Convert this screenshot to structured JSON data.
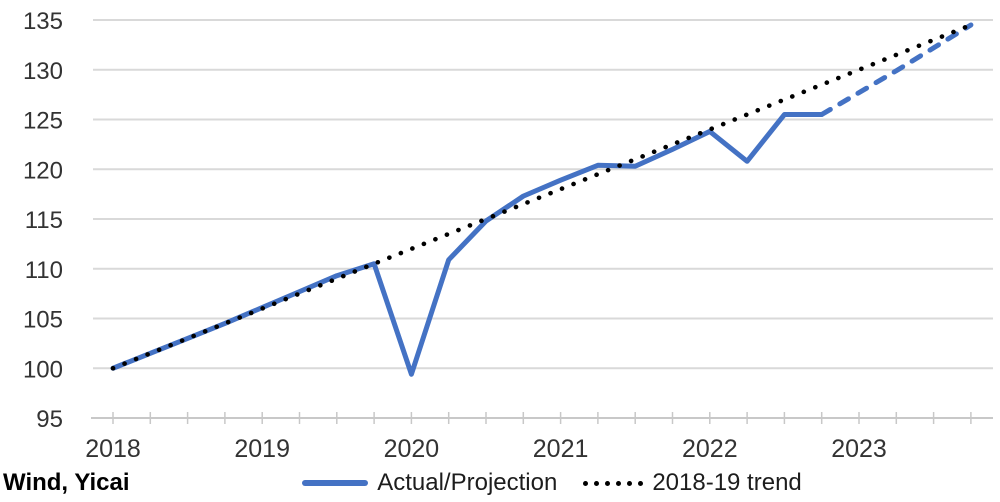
{
  "chart_data": {
    "type": "line",
    "title": "",
    "source_label": "Wind, Yicai",
    "x_unit": "quarter",
    "x_quarters": [
      "2018Q1",
      "2018Q2",
      "2018Q3",
      "2018Q4",
      "2019Q1",
      "2019Q2",
      "2019Q3",
      "2019Q4",
      "2020Q1",
      "2020Q2",
      "2020Q3",
      "2020Q4",
      "2021Q1",
      "2021Q2",
      "2021Q3",
      "2021Q4",
      "2022Q1",
      "2022Q2",
      "2022Q3",
      "2022Q4",
      "2023Q1",
      "2023Q2",
      "2023Q3",
      "2023Q4"
    ],
    "x_year_labels": [
      "2018",
      "2019",
      "2020",
      "2021",
      "2022",
      "2023"
    ],
    "y_ticks": [
      135,
      130,
      125,
      120,
      115,
      110,
      105,
      100,
      95
    ],
    "ylim": [
      95,
      135
    ],
    "grid": "horizontal-light",
    "legend_position": "bottom-center",
    "colors": {
      "actual_line": "#4472C4",
      "trend_line": "#000000",
      "gridline": "#D9D9D9",
      "axis_line": "#C8C8C8",
      "axis_text": "#333333"
    },
    "series": [
      {
        "name": "Actual/Projection",
        "style": "solid",
        "color": "#4472C4",
        "x_index_start": 0,
        "values": [
          100.0,
          101.5,
          103.0,
          104.5,
          106.1,
          107.7,
          109.3,
          110.5,
          99.4,
          110.9,
          114.8,
          117.3,
          118.9,
          120.4,
          120.3,
          122.0,
          123.8,
          120.8,
          125.5,
          125.5
        ]
      },
      {
        "name": "Actual/Projection (dashed projection)",
        "style": "dashed",
        "color": "#4472C4",
        "x_index_start": 19,
        "values": [
          125.5,
          127.7,
          129.9,
          132.2,
          134.5
        ]
      },
      {
        "name": "2018-19 trend",
        "style": "dotted",
        "color": "#000000",
        "x_index_start": 0,
        "values": [
          100,
          101.5,
          103,
          104.5,
          106,
          107.5,
          109,
          110.5,
          112,
          113.5,
          115,
          116.5,
          118,
          119.5,
          121,
          122.5,
          124,
          125.5,
          127,
          128.5,
          130,
          131.5,
          133,
          134.5
        ]
      }
    ],
    "legend": {
      "items": [
        {
          "label": "Actual/Projection",
          "swatch": "solid-blue-line-icon"
        },
        {
          "label": "2018-19 trend",
          "swatch": "black-dotted-line-icon"
        }
      ]
    }
  }
}
